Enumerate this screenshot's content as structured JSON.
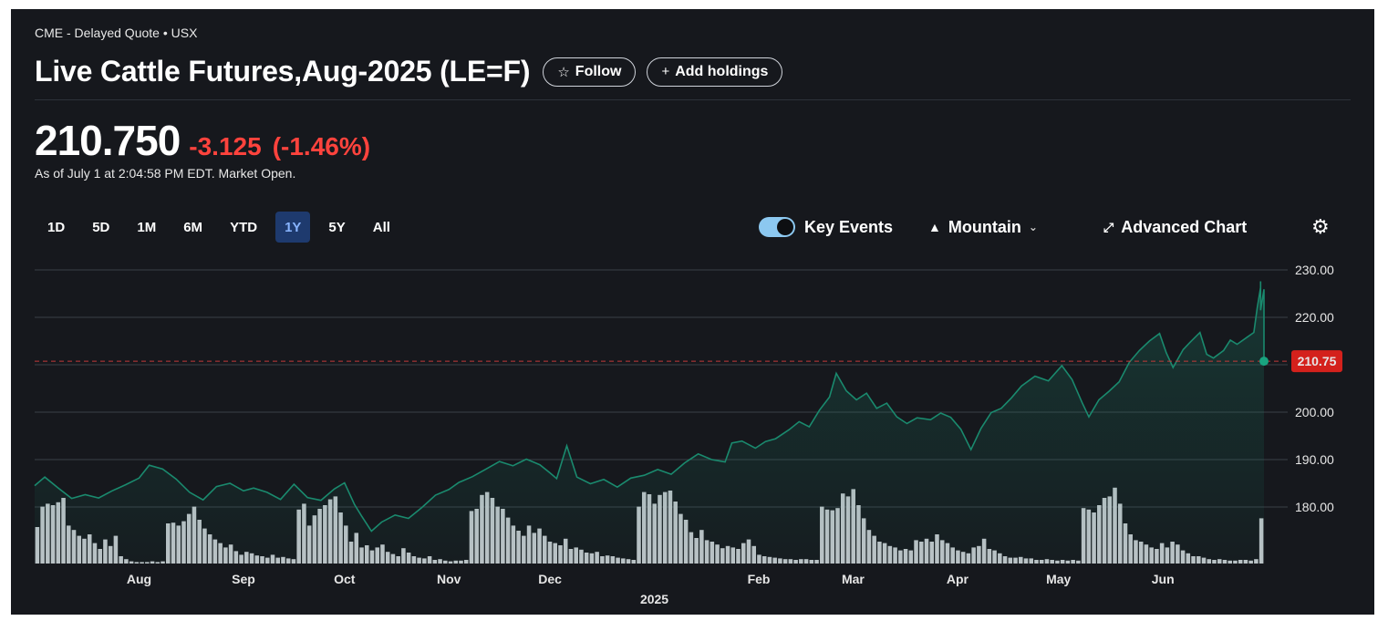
{
  "header": {
    "source": "CME - Delayed Quote • USX",
    "title": "Live Cattle Futures,Aug-2025 (LE=F)",
    "follow_label": "Follow",
    "add_holdings_label": "Add holdings"
  },
  "quote": {
    "price": "210.750",
    "change": "-3.125",
    "change_pct": "(-1.46%)",
    "as_of": "As of July 1 at 2:04:58 PM EDT. Market Open."
  },
  "ranges": [
    "1D",
    "5D",
    "1M",
    "6M",
    "YTD",
    "1Y",
    "5Y",
    "All"
  ],
  "active_range": "1Y",
  "toolbar": {
    "key_events_label": "Key Events",
    "key_events_on": true,
    "chart_style_label": "Mountain",
    "advanced_chart_label": "Advanced Chart"
  },
  "colors": {
    "line": "#1a8a6e",
    "negative": "#ff433d",
    "active_range_bg": "#1e3a6e",
    "price_tag_bg": "#d4211c",
    "volume": "#c9cdd3"
  },
  "icons": {
    "follow": "star-icon",
    "add": "plus-icon",
    "chart_style": "mountain-icon",
    "advanced": "expand-icon",
    "settings": "gear-icon"
  },
  "chart_data": {
    "type": "area",
    "title": "",
    "xlabel": "",
    "ylabel": "",
    "ylim": [
      170,
      230
    ],
    "yticks": [
      "230.00",
      "220.00",
      "210.00",
      "200.00",
      "190.00",
      "180.00"
    ],
    "xticks": [
      {
        "label": "Aug",
        "x": "2024-08-01"
      },
      {
        "label": "Sep",
        "x": "2024-09-01"
      },
      {
        "label": "Oct",
        "x": "2024-10-01"
      },
      {
        "label": "Nov",
        "x": "2024-11-01"
      },
      {
        "label": "Dec",
        "x": "2024-12-01"
      },
      {
        "label": "Feb",
        "x": "2025-02-01"
      },
      {
        "label": "Mar",
        "x": "2025-03-01"
      },
      {
        "label": "Apr",
        "x": "2025-04-01"
      },
      {
        "label": "May",
        "x": "2025-05-01"
      },
      {
        "label": "Jun",
        "x": "2025-06-01"
      }
    ],
    "year_label": {
      "label": "2025",
      "x": "2025-01-01"
    },
    "x_range": [
      "2024-07-01",
      "2025-07-01"
    ],
    "current_price": 210.75,
    "current_price_label": "210.75",
    "series": [
      {
        "values_xy": [
          [
            "2024-07-01",
            184.5
          ],
          [
            "2024-07-04",
            186.3
          ],
          [
            "2024-07-08",
            184.0
          ],
          [
            "2024-07-12",
            181.8
          ],
          [
            "2024-07-16",
            182.6
          ],
          [
            "2024-07-20",
            181.9
          ],
          [
            "2024-07-24",
            183.4
          ],
          [
            "2024-07-28",
            184.7
          ],
          [
            "2024-08-01",
            186.1
          ],
          [
            "2024-08-04",
            188.8
          ],
          [
            "2024-08-08",
            188.0
          ],
          [
            "2024-08-12",
            185.9
          ],
          [
            "2024-08-16",
            183.1
          ],
          [
            "2024-08-20",
            181.5
          ],
          [
            "2024-08-24",
            184.3
          ],
          [
            "2024-08-28",
            185.0
          ],
          [
            "2024-09-01",
            183.4
          ],
          [
            "2024-09-04",
            184.0
          ],
          [
            "2024-09-08",
            183.1
          ],
          [
            "2024-09-12",
            181.6
          ],
          [
            "2024-09-16",
            184.8
          ],
          [
            "2024-09-20",
            182.0
          ],
          [
            "2024-09-24",
            181.4
          ],
          [
            "2024-09-28",
            183.8
          ],
          [
            "2024-10-01",
            185.1
          ],
          [
            "2024-10-04",
            180.5
          ],
          [
            "2024-10-06",
            178.2
          ],
          [
            "2024-10-09",
            174.9
          ],
          [
            "2024-10-12",
            176.8
          ],
          [
            "2024-10-16",
            178.3
          ],
          [
            "2024-10-20",
            177.6
          ],
          [
            "2024-10-24",
            179.9
          ],
          [
            "2024-10-28",
            182.5
          ],
          [
            "2024-11-01",
            183.7
          ],
          [
            "2024-11-04",
            185.2
          ],
          [
            "2024-11-08",
            186.4
          ],
          [
            "2024-11-12",
            188.0
          ],
          [
            "2024-11-16",
            189.6
          ],
          [
            "2024-11-20",
            188.7
          ],
          [
            "2024-11-24",
            190.1
          ],
          [
            "2024-11-28",
            188.9
          ],
          [
            "2024-12-01",
            187.2
          ],
          [
            "2024-12-03",
            186.0
          ],
          [
            "2024-12-06",
            192.9
          ],
          [
            "2024-12-09",
            186.3
          ],
          [
            "2024-12-13",
            184.9
          ],
          [
            "2024-12-17",
            185.8
          ],
          [
            "2024-12-21",
            184.2
          ],
          [
            "2024-12-25",
            186.1
          ],
          [
            "2024-12-29",
            186.7
          ],
          [
            "2025-01-02",
            187.9
          ],
          [
            "2025-01-06",
            186.9
          ],
          [
            "2025-01-10",
            189.3
          ],
          [
            "2025-01-14",
            191.2
          ],
          [
            "2025-01-18",
            190.0
          ],
          [
            "2025-01-22",
            189.5
          ],
          [
            "2025-01-24",
            193.5
          ],
          [
            "2025-01-27",
            193.9
          ],
          [
            "2025-01-31",
            192.4
          ],
          [
            "2025-02-03",
            193.8
          ],
          [
            "2025-02-06",
            194.4
          ],
          [
            "2025-02-10",
            196.3
          ],
          [
            "2025-02-13",
            198.0
          ],
          [
            "2025-02-16",
            196.9
          ],
          [
            "2025-02-19",
            200.4
          ],
          [
            "2025-02-22",
            203.2
          ],
          [
            "2025-02-24",
            208.2
          ],
          [
            "2025-02-27",
            204.5
          ],
          [
            "2025-03-02",
            202.6
          ],
          [
            "2025-03-05",
            204.0
          ],
          [
            "2025-03-08",
            200.8
          ],
          [
            "2025-03-11",
            201.9
          ],
          [
            "2025-03-14",
            199.0
          ],
          [
            "2025-03-17",
            197.6
          ],
          [
            "2025-03-20",
            198.8
          ],
          [
            "2025-03-24",
            198.4
          ],
          [
            "2025-03-27",
            199.8
          ],
          [
            "2025-03-30",
            198.9
          ],
          [
            "2025-04-02",
            196.4
          ],
          [
            "2025-04-05",
            192.1
          ],
          [
            "2025-04-08",
            196.6
          ],
          [
            "2025-04-11",
            199.9
          ],
          [
            "2025-04-14",
            200.8
          ],
          [
            "2025-04-17",
            203.0
          ],
          [
            "2025-04-20",
            205.5
          ],
          [
            "2025-04-24",
            207.6
          ],
          [
            "2025-04-28",
            206.6
          ],
          [
            "2025-05-02",
            209.8
          ],
          [
            "2025-05-05",
            206.9
          ],
          [
            "2025-05-08",
            202.0
          ],
          [
            "2025-05-10",
            199.0
          ],
          [
            "2025-05-13",
            202.6
          ],
          [
            "2025-05-16",
            204.4
          ],
          [
            "2025-05-19",
            206.4
          ],
          [
            "2025-05-22",
            210.5
          ],
          [
            "2025-05-25",
            213.0
          ],
          [
            "2025-05-28",
            215.0
          ],
          [
            "2025-05-31",
            216.6
          ],
          [
            "2025-06-02",
            212.5
          ],
          [
            "2025-06-04",
            209.4
          ],
          [
            "2025-06-07",
            213.2
          ],
          [
            "2025-06-09",
            214.7
          ],
          [
            "2025-06-12",
            216.8
          ],
          [
            "2025-06-14",
            212.2
          ],
          [
            "2025-06-16",
            211.4
          ],
          [
            "2025-06-19",
            213.0
          ],
          [
            "2025-06-21",
            215.2
          ],
          [
            "2025-06-23",
            214.3
          ],
          [
            "2025-06-26",
            215.8
          ],
          [
            "2025-06-28",
            216.8
          ],
          [
            "2025-06-29",
            222.0
          ],
          [
            "2025-06-30",
            226.3
          ],
          [
            "2025-06-30",
            227.6
          ],
          [
            "2025-06-30",
            225.0
          ],
          [
            "2025-06-30",
            222.6
          ],
          [
            "2025-06-30",
            221.5
          ],
          [
            "2025-07-01",
            225.9
          ],
          [
            "2025-07-01",
            210.75
          ]
        ]
      }
    ],
    "volume_relative": [
      0.5,
      0.78,
      0.82,
      0.8,
      0.84,
      0.9,
      0.52,
      0.46,
      0.38,
      0.34,
      0.4,
      0.28,
      0.2,
      0.33,
      0.24,
      0.38,
      0.1,
      0.06,
      0.03,
      0.02,
      0.02,
      0.02,
      0.03,
      0.02,
      0.03,
      0.55,
      0.56,
      0.52,
      0.58,
      0.68,
      0.78,
      0.6,
      0.48,
      0.4,
      0.33,
      0.28,
      0.22,
      0.26,
      0.17,
      0.12,
      0.16,
      0.14,
      0.11,
      0.1,
      0.08,
      0.12,
      0.08,
      0.09,
      0.07,
      0.06,
      0.74,
      0.82,
      0.52,
      0.66,
      0.75,
      0.8,
      0.88,
      0.92,
      0.7,
      0.52,
      0.3,
      0.42,
      0.22,
      0.25,
      0.18,
      0.22,
      0.26,
      0.16,
      0.13,
      0.1,
      0.21,
      0.15,
      0.1,
      0.08,
      0.07,
      0.1,
      0.05,
      0.06,
      0.04,
      0.03,
      0.04,
      0.04,
      0.05,
      0.72,
      0.75,
      0.94,
      0.98,
      0.9,
      0.78,
      0.75,
      0.63,
      0.52,
      0.45,
      0.38,
      0.52,
      0.42,
      0.48,
      0.38,
      0.3,
      0.28,
      0.25,
      0.34,
      0.2,
      0.22,
      0.19,
      0.15,
      0.14,
      0.16,
      0.1,
      0.11,
      0.1,
      0.08,
      0.07,
      0.06,
      0.05,
      0.78,
      0.98,
      0.95,
      0.82,
      0.94,
      0.98,
      1.0,
      0.85,
      0.68,
      0.6,
      0.43,
      0.35,
      0.46,
      0.32,
      0.3,
      0.26,
      0.21,
      0.24,
      0.22,
      0.2,
      0.28,
      0.33,
      0.24,
      0.12,
      0.1,
      0.09,
      0.08,
      0.07,
      0.06,
      0.06,
      0.05,
      0.06,
      0.06,
      0.05,
      0.05,
      0.78,
      0.74,
      0.73,
      0.76,
      0.96,
      0.92,
      1.02,
      0.8,
      0.62,
      0.46,
      0.38,
      0.3,
      0.28,
      0.24,
      0.22,
      0.18,
      0.2,
      0.18,
      0.32,
      0.3,
      0.34,
      0.3,
      0.4,
      0.32,
      0.28,
      0.22,
      0.18,
      0.16,
      0.14,
      0.22,
      0.24,
      0.34,
      0.2,
      0.18,
      0.14,
      0.1,
      0.08,
      0.08,
      0.09,
      0.07,
      0.07,
      0.05,
      0.05,
      0.06,
      0.05,
      0.04,
      0.05,
      0.04,
      0.05,
      0.04,
      0.76,
      0.74,
      0.7,
      0.8,
      0.9,
      0.92,
      1.04,
      0.82,
      0.55,
      0.4,
      0.32,
      0.3,
      0.26,
      0.22,
      0.2,
      0.28,
      0.22,
      0.3,
      0.26,
      0.18,
      0.14,
      0.1,
      0.1,
      0.08,
      0.06,
      0.05,
      0.06,
      0.05,
      0.04,
      0.04,
      0.05,
      0.05,
      0.04,
      0.06,
      0.62
    ]
  }
}
